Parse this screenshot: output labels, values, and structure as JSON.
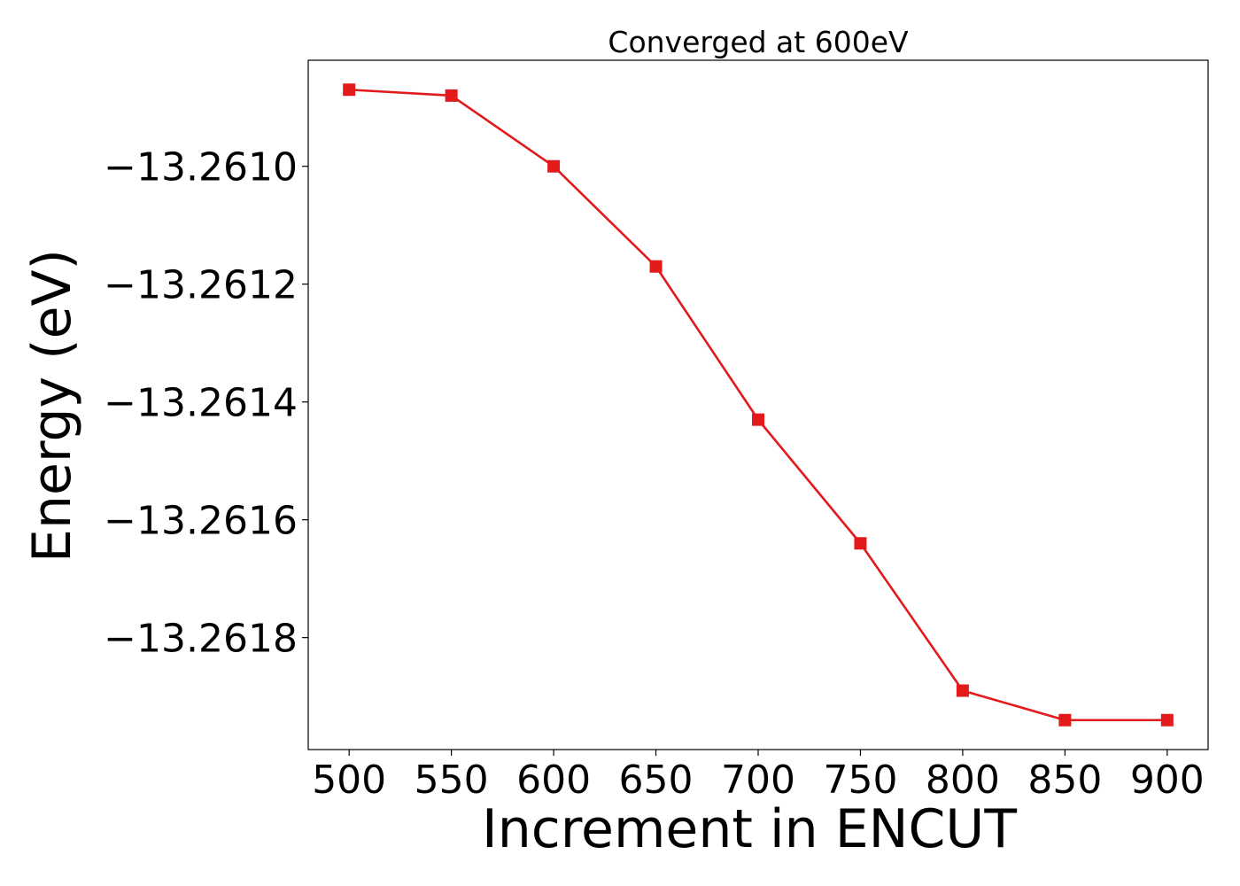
{
  "chart_data": {
    "type": "line",
    "title": "Converged at 600eV",
    "xlabel": "Increment in ENCUT",
    "ylabel": "Energy (eV)",
    "x": [
      500,
      550,
      600,
      650,
      700,
      750,
      800,
      850,
      900
    ],
    "series": [
      {
        "values": [
          -13.26087,
          -13.26088,
          -13.261,
          -13.26117,
          -13.26143,
          -13.26164,
          -13.26189,
          -13.26194,
          -13.26194
        ],
        "color": "#e31a1c",
        "marker": "square"
      }
    ],
    "xticks": [
      500,
      550,
      600,
      650,
      700,
      750,
      800,
      850,
      900
    ],
    "xtick_labels": [
      "500",
      "550",
      "600",
      "650",
      "700",
      "750",
      "800",
      "850",
      "900"
    ],
    "yticks": [
      -13.261,
      -13.2612,
      -13.2614,
      -13.2616,
      -13.2618
    ],
    "ytick_labels": [
      "−13.2610",
      "−13.2612",
      "−13.2614",
      "−13.2616",
      "−13.2618"
    ],
    "xlim": [
      480,
      920
    ],
    "ylim": [
      -13.26199,
      -13.26082
    ],
    "grid": false,
    "legend": "none"
  }
}
